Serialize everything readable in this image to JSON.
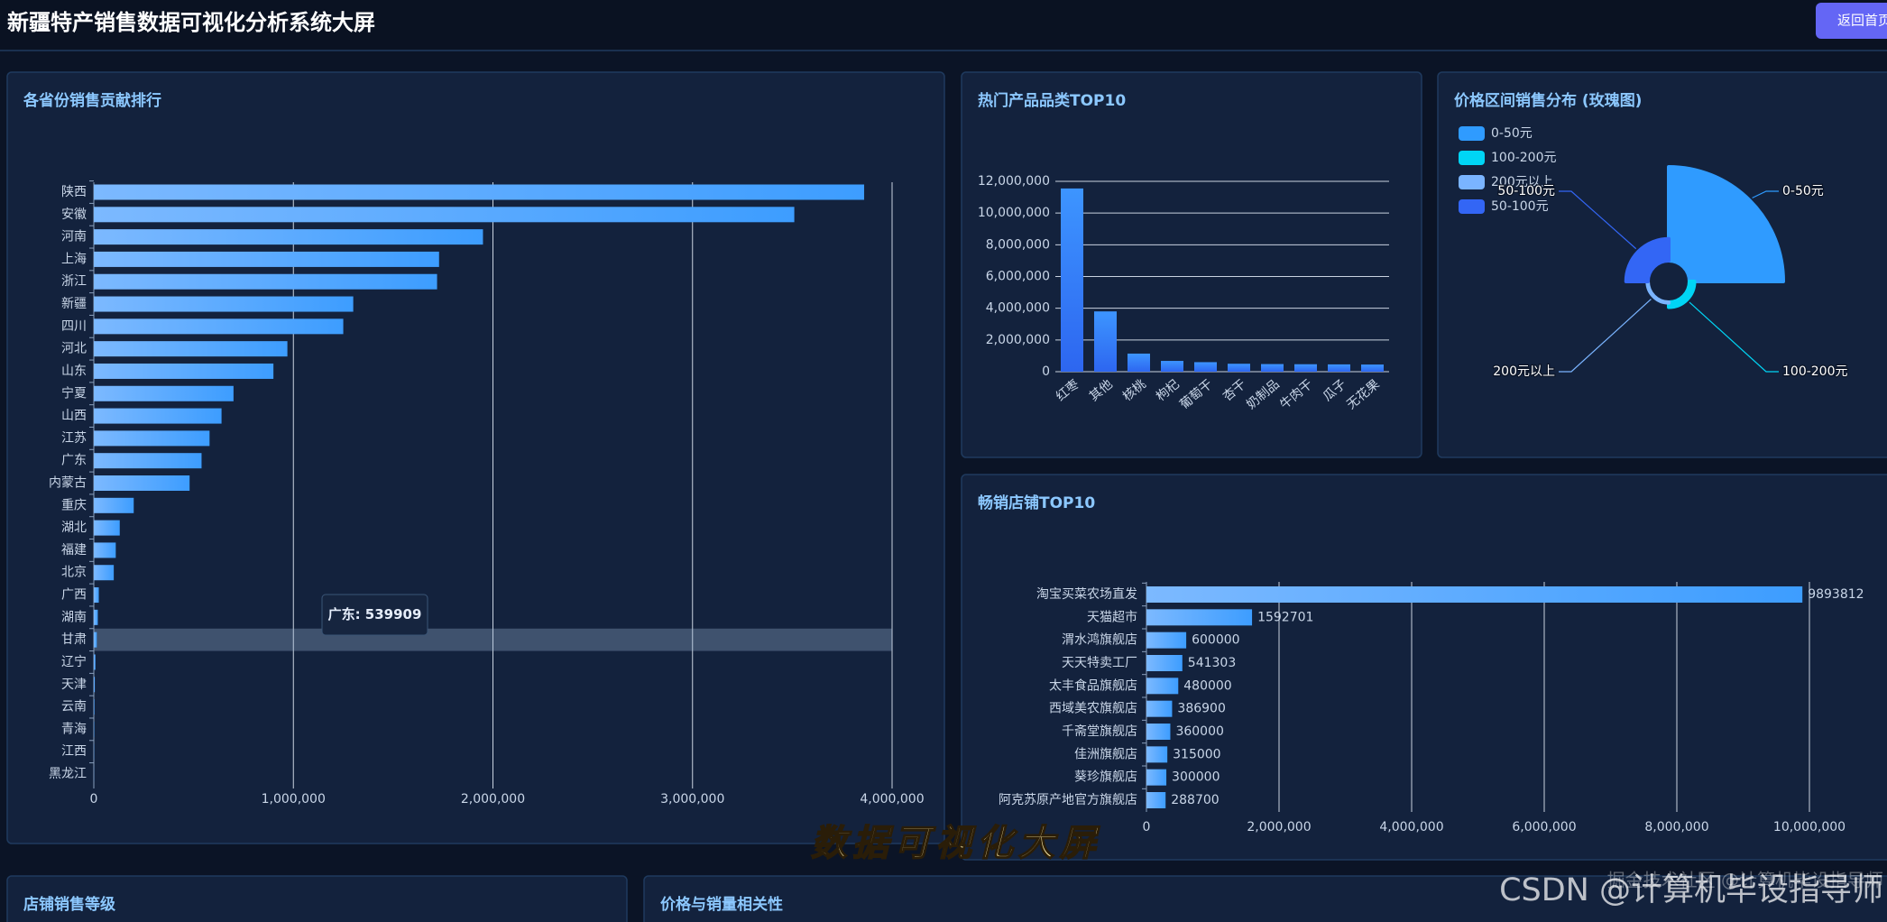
{
  "header": {
    "title": "新疆特产销售数据可视化分析系统大屏",
    "button": "返回首页"
  },
  "chart_data": [
    {
      "type": "bar",
      "horizontal": true,
      "title": "各省份销售贡献排行",
      "categories": [
        "陕西",
        "安徽",
        "河南",
        "上海",
        "浙江",
        "新疆",
        "四川",
        "河北",
        "山东",
        "宁夏",
        "山西",
        "江苏",
        "广东",
        "内蒙古",
        "重庆",
        "湖北",
        "福建",
        "北京",
        "广西",
        "湖南",
        "甘肃",
        "辽宁",
        "天津",
        "云南",
        "青海",
        "江西",
        "黑龙江"
      ],
      "values": [
        3860000,
        3510000,
        1950000,
        1730000,
        1720000,
        1300000,
        1250000,
        970000,
        900000,
        700000,
        640000,
        580000,
        539909,
        480000,
        200000,
        130000,
        110000,
        100000,
        25000,
        20000,
        15000,
        8000,
        5000,
        3000,
        2000,
        1000,
        500
      ],
      "gradient": [
        "#7cb9ff",
        "#3d9dff"
      ],
      "xlim": [
        0,
        4000000
      ],
      "xticks": [
        0,
        {
          "value": 1000000,
          "label": "1,000,000"
        },
        {
          "value": 2000000,
          "label": "2,000,000"
        },
        {
          "value": 3000000,
          "label": "3,000,000"
        },
        {
          "value": 4000000,
          "label": "4,000,000"
        }
      ],
      "grid": true,
      "tooltip": "广东: 539909"
    },
    {
      "type": "bar",
      "horizontal": false,
      "title": "热门产品品类TOP10",
      "categories": [
        "红枣",
        "其他",
        "核桃",
        "枸杞",
        "葡萄干",
        "杏干",
        "奶制品",
        "牛肉干",
        "瓜子",
        "无花果"
      ],
      "values": [
        11550000,
        3800000,
        1140000,
        680000,
        600000,
        500000,
        480000,
        470000,
        460000,
        450000
      ],
      "gradient": [
        "#3d95ff",
        "#2d66f0"
      ],
      "ylim": [
        0,
        12000000
      ],
      "yticks": [
        0,
        {
          "value": 2000000,
          "label": "2,000,000"
        },
        {
          "value": 4000000,
          "label": "4,000,000"
        },
        {
          "value": 6000000,
          "label": "6,000,000"
        },
        {
          "value": 8000000,
          "label": "8,000,000"
        },
        {
          "value": 10000000,
          "label": "10,000,000"
        },
        {
          "value": 12000000,
          "label": "12,000,000"
        }
      ],
      "grid": true
    },
    {
      "type": "pie",
      "rose": true,
      "title": "价格区间销售分布 (玫瑰图)",
      "categories": [
        "0-50元",
        "100-200元",
        "200元以上",
        "50-100元"
      ],
      "values": [
        15000000,
        800000,
        100000,
        3500000
      ],
      "colors": [
        "#2f9bff",
        "#00d5f5",
        "#7ab4ff",
        "#3366f5"
      ],
      "legend": "top-left"
    },
    {
      "type": "bar",
      "horizontal": true,
      "title": "畅销店铺TOP10",
      "categories": [
        "淘宝买菜农场直发",
        "天猫超市",
        "渭水鸿旗舰店",
        "天天特卖工厂",
        "太丰食品旗舰店",
        "西域美农旗舰店",
        "千斋堂旗舰店",
        "佳洲旗舰店",
        "葵珍旗舰店",
        "阿克苏原产地官方旗舰店"
      ],
      "values": [
        9893812,
        1592701,
        600000,
        541303,
        480000,
        386900,
        360000,
        315000,
        300000,
        288700
      ],
      "gradient": [
        "#7cb9ff",
        "#3d9dff"
      ],
      "xlim": [
        0,
        10000000
      ],
      "xticks": [
        0,
        {
          "value": 2000000,
          "label": "2,000,000"
        },
        {
          "value": 4000000,
          "label": "4,000,000"
        },
        {
          "value": 6000000,
          "label": "6,000,000"
        },
        {
          "value": 8000000,
          "label": "8,000,000"
        },
        {
          "value": 10000000,
          "label": "10,000,000"
        }
      ],
      "grid": true,
      "data_labels": true
    }
  ],
  "panels": {
    "bottom_left_title": "店铺销售等级",
    "bottom_right_title": "价格与销量相关性"
  },
  "overlay": {
    "watermark": "数据可视化大屏",
    "csdn": "CSDN @计算机毕设指导师",
    "juejin": "掘金技术社区 @计算机毕设指导师"
  }
}
